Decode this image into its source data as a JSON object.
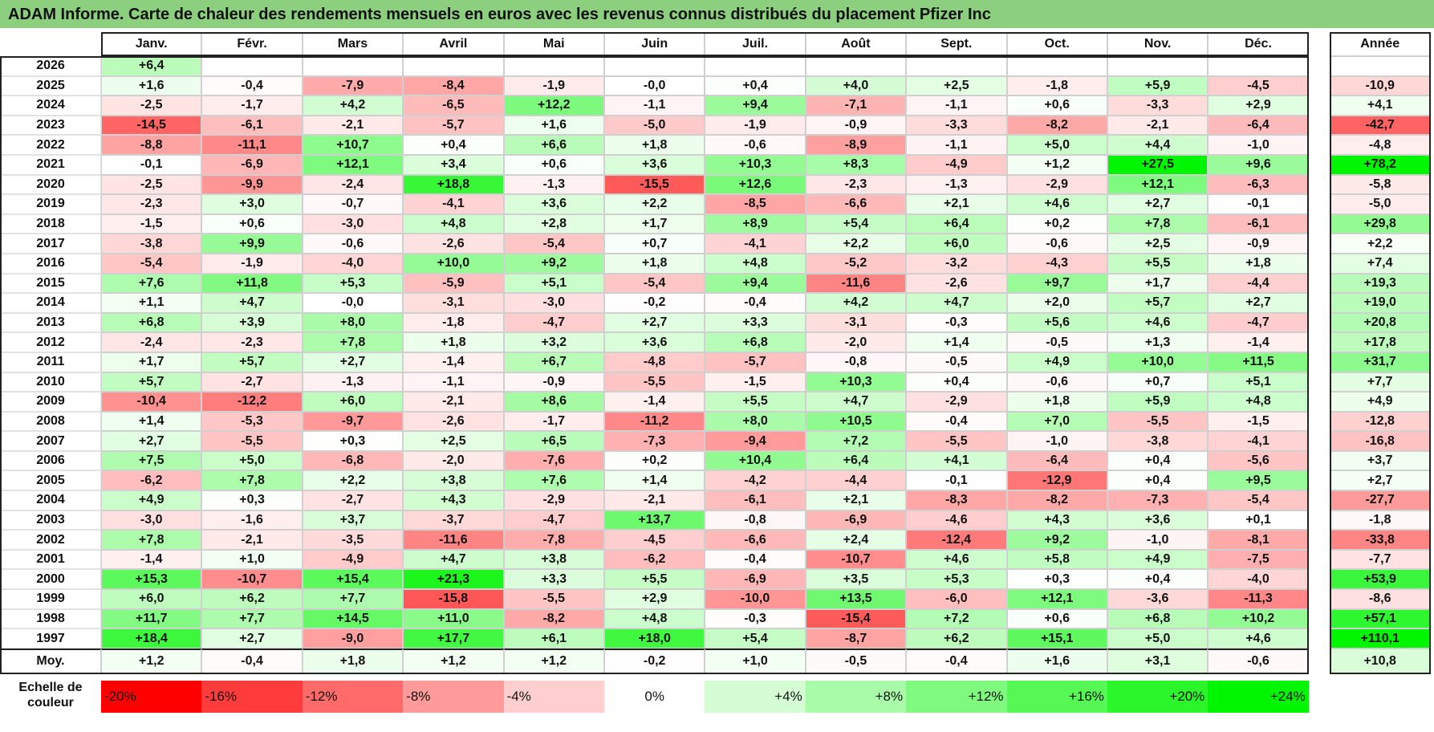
{
  "title": "ADAM Informe. Carte de chaleur des rendements mensuels en euros avec les revenus connus distribués du placement Pfizer Inc",
  "chart_data": {
    "type": "heatmap",
    "title": "ADAM Informe. Carte de chaleur des rendements mensuels en euros avec les revenus connus distribués du placement Pfizer Inc",
    "columns": [
      "Janv.",
      "Févr.",
      "Mars",
      "Avril",
      "Mai",
      "Juin",
      "Juil.",
      "Août",
      "Sept.",
      "Oct.",
      "Nov.",
      "Déc."
    ],
    "annual_header": "Année",
    "rows": [
      {
        "year": "2026",
        "values": [
          6.4,
          null,
          null,
          null,
          null,
          null,
          null,
          null,
          null,
          null,
          null,
          null
        ],
        "labels": [
          "+6,4",
          "",
          "",
          "",
          "",
          "",
          "",
          "",
          "",
          "",
          "",
          ""
        ],
        "annual": null,
        "annual_label": ""
      },
      {
        "year": "2025",
        "values": [
          1.6,
          -0.4,
          -7.9,
          -8.4,
          -1.9,
          -0.0,
          0.4,
          4.0,
          2.5,
          -1.8,
          5.9,
          -4.5
        ],
        "labels": [
          "+1,6",
          "-0,4",
          "-7,9",
          "-8,4",
          "-1,9",
          "-0,0",
          "+0,4",
          "+4,0",
          "+2,5",
          "-1,8",
          "+5,9",
          "-4,5"
        ],
        "annual": -10.9,
        "annual_label": "-10,9"
      },
      {
        "year": "2024",
        "values": [
          -2.5,
          -1.7,
          4.2,
          -6.5,
          12.2,
          -1.1,
          9.4,
          -7.1,
          -1.1,
          0.6,
          -3.3,
          2.9
        ],
        "labels": [
          "-2,5",
          "-1,7",
          "+4,2",
          "-6,5",
          "+12,2",
          "-1,1",
          "+9,4",
          "-7,1",
          "-1,1",
          "+0,6",
          "-3,3",
          "+2,9"
        ],
        "annual": 4.1,
        "annual_label": "+4,1"
      },
      {
        "year": "2023",
        "values": [
          -14.5,
          -6.1,
          -2.1,
          -5.7,
          1.6,
          -5.0,
          -1.9,
          -0.9,
          -3.3,
          -8.2,
          -2.1,
          -6.4
        ],
        "labels": [
          "-14,5",
          "-6,1",
          "-2,1",
          "-5,7",
          "+1,6",
          "-5,0",
          "-1,9",
          "-0,9",
          "-3,3",
          "-8,2",
          "-2,1",
          "-6,4"
        ],
        "annual": -42.7,
        "annual_label": "-42,7"
      },
      {
        "year": "2022",
        "values": [
          -8.8,
          -11.1,
          10.7,
          0.4,
          6.6,
          1.8,
          -0.6,
          -8.9,
          -1.1,
          5.0,
          4.4,
          -1.0
        ],
        "labels": [
          "-8,8",
          "-11,1",
          "+10,7",
          "+0,4",
          "+6,6",
          "+1,8",
          "-0,6",
          "-8,9",
          "-1,1",
          "+5,0",
          "+4,4",
          "-1,0"
        ],
        "annual": -4.8,
        "annual_label": "-4,8"
      },
      {
        "year": "2021",
        "values": [
          -0.1,
          -6.9,
          12.1,
          3.4,
          0.6,
          3.6,
          10.3,
          8.3,
          -4.9,
          1.2,
          27.5,
          9.6
        ],
        "labels": [
          "-0,1",
          "-6,9",
          "+12,1",
          "+3,4",
          "+0,6",
          "+3,6",
          "+10,3",
          "+8,3",
          "-4,9",
          "+1,2",
          "+27,5",
          "+9,6"
        ],
        "annual": 78.2,
        "annual_label": "+78,2"
      },
      {
        "year": "2020",
        "values": [
          -2.5,
          -9.9,
          -2.4,
          18.8,
          -1.3,
          -15.5,
          12.6,
          -2.3,
          -1.3,
          -2.9,
          12.1,
          -6.3
        ],
        "labels": [
          "-2,5",
          "-9,9",
          "-2,4",
          "+18,8",
          "-1,3",
          "-15,5",
          "+12,6",
          "-2,3",
          "-1,3",
          "-2,9",
          "+12,1",
          "-6,3"
        ],
        "annual": -5.8,
        "annual_label": "-5,8"
      },
      {
        "year": "2019",
        "values": [
          -2.3,
          3.0,
          -0.7,
          -4.1,
          3.6,
          2.2,
          -8.5,
          -6.6,
          2.1,
          4.6,
          2.7,
          -0.1
        ],
        "labels": [
          "-2,3",
          "+3,0",
          "-0,7",
          "-4,1",
          "+3,6",
          "+2,2",
          "-8,5",
          "-6,6",
          "+2,1",
          "+4,6",
          "+2,7",
          "-0,1"
        ],
        "annual": -5.0,
        "annual_label": "-5,0"
      },
      {
        "year": "2018",
        "values": [
          -1.5,
          0.6,
          -3.0,
          4.8,
          2.8,
          1.7,
          8.9,
          5.4,
          6.4,
          0.2,
          7.8,
          -6.1
        ],
        "labels": [
          "-1,5",
          "+0,6",
          "-3,0",
          "+4,8",
          "+2,8",
          "+1,7",
          "+8,9",
          "+5,4",
          "+6,4",
          "+0,2",
          "+7,8",
          "-6,1"
        ],
        "annual": 29.8,
        "annual_label": "+29,8"
      },
      {
        "year": "2017",
        "values": [
          -3.8,
          9.9,
          -0.6,
          -2.6,
          -5.4,
          0.7,
          -4.1,
          2.2,
          6.0,
          -0.6,
          2.5,
          -0.9
        ],
        "labels": [
          "-3,8",
          "+9,9",
          "-0,6",
          "-2,6",
          "-5,4",
          "+0,7",
          "-4,1",
          "+2,2",
          "+6,0",
          "-0,6",
          "+2,5",
          "-0,9"
        ],
        "annual": 2.2,
        "annual_label": "+2,2"
      },
      {
        "year": "2016",
        "values": [
          -5.4,
          -1.9,
          -4.0,
          10.0,
          9.2,
          1.8,
          4.8,
          -5.2,
          -3.2,
          -4.3,
          5.5,
          1.8
        ],
        "labels": [
          "-5,4",
          "-1,9",
          "-4,0",
          "+10,0",
          "+9,2",
          "+1,8",
          "+4,8",
          "-5,2",
          "-3,2",
          "-4,3",
          "+5,5",
          "+1,8"
        ],
        "annual": 7.4,
        "annual_label": "+7,4"
      },
      {
        "year": "2015",
        "values": [
          7.6,
          11.8,
          5.3,
          -5.9,
          5.1,
          -5.4,
          9.4,
          -11.6,
          -2.6,
          9.7,
          1.7,
          -4.4
        ],
        "labels": [
          "+7,6",
          "+11,8",
          "+5,3",
          "-5,9",
          "+5,1",
          "-5,4",
          "+9,4",
          "-11,6",
          "-2,6",
          "+9,7",
          "+1,7",
          "-4,4"
        ],
        "annual": 19.3,
        "annual_label": "+19,3"
      },
      {
        "year": "2014",
        "values": [
          1.1,
          4.7,
          -0.0,
          -3.1,
          -3.0,
          -0.2,
          -0.4,
          4.2,
          4.7,
          2.0,
          5.7,
          2.7
        ],
        "labels": [
          "+1,1",
          "+4,7",
          "-0,0",
          "-3,1",
          "-3,0",
          "-0,2",
          "-0,4",
          "+4,2",
          "+4,7",
          "+2,0",
          "+5,7",
          "+2,7"
        ],
        "annual": 19.0,
        "annual_label": "+19,0"
      },
      {
        "year": "2013",
        "values": [
          6.8,
          3.9,
          8.0,
          -1.8,
          -4.7,
          2.7,
          3.3,
          -3.1,
          -0.3,
          5.6,
          4.6,
          -4.7
        ],
        "labels": [
          "+6,8",
          "+3,9",
          "+8,0",
          "-1,8",
          "-4,7",
          "+2,7",
          "+3,3",
          "-3,1",
          "-0,3",
          "+5,6",
          "+4,6",
          "-4,7"
        ],
        "annual": 20.8,
        "annual_label": "+20,8"
      },
      {
        "year": "2012",
        "values": [
          -2.4,
          -2.3,
          7.8,
          1.8,
          3.2,
          3.6,
          6.8,
          -2.0,
          1.4,
          -0.5,
          1.3,
          -1.4
        ],
        "labels": [
          "-2,4",
          "-2,3",
          "+7,8",
          "+1,8",
          "+3,2",
          "+3,6",
          "+6,8",
          "-2,0",
          "+1,4",
          "-0,5",
          "+1,3",
          "-1,4"
        ],
        "annual": 17.8,
        "annual_label": "+17,8"
      },
      {
        "year": "2011",
        "values": [
          1.7,
          5.7,
          2.7,
          -1.4,
          6.7,
          -4.8,
          -5.7,
          -0.8,
          -0.5,
          4.9,
          10.0,
          11.5
        ],
        "labels": [
          "+1,7",
          "+5,7",
          "+2,7",
          "-1,4",
          "+6,7",
          "-4,8",
          "-5,7",
          "-0,8",
          "-0,5",
          "+4,9",
          "+10,0",
          "+11,5"
        ],
        "annual": 31.7,
        "annual_label": "+31,7"
      },
      {
        "year": "2010",
        "values": [
          5.7,
          -2.7,
          -1.3,
          -1.1,
          -0.9,
          -5.5,
          -1.5,
          10.3,
          0.4,
          -0.6,
          0.7,
          5.1
        ],
        "labels": [
          "+5,7",
          "-2,7",
          "-1,3",
          "-1,1",
          "-0,9",
          "-5,5",
          "-1,5",
          "+10,3",
          "+0,4",
          "-0,6",
          "+0,7",
          "+5,1"
        ],
        "annual": 7.7,
        "annual_label": "+7,7"
      },
      {
        "year": "2009",
        "values": [
          -10.4,
          -12.2,
          6.0,
          -2.1,
          8.6,
          -1.4,
          5.5,
          4.7,
          -2.9,
          1.8,
          5.9,
          4.8
        ],
        "labels": [
          "-10,4",
          "-12,2",
          "+6,0",
          "-2,1",
          "+8,6",
          "-1,4",
          "+5,5",
          "+4,7",
          "-2,9",
          "+1,8",
          "+5,9",
          "+4,8"
        ],
        "annual": 4.9,
        "annual_label": "+4,9"
      },
      {
        "year": "2008",
        "values": [
          1.4,
          -5.3,
          -9.7,
          -2.6,
          -1.7,
          -11.2,
          8.0,
          10.5,
          -0.4,
          7.0,
          -5.5,
          -1.5
        ],
        "labels": [
          "+1,4",
          "-5,3",
          "-9,7",
          "-2,6",
          "-1,7",
          "-11,2",
          "+8,0",
          "+10,5",
          "-0,4",
          "+7,0",
          "-5,5",
          "-1,5"
        ],
        "annual": -12.8,
        "annual_label": "-12,8"
      },
      {
        "year": "2007",
        "values": [
          2.7,
          -5.5,
          0.3,
          2.5,
          6.5,
          -7.3,
          -9.4,
          7.2,
          -5.5,
          -1.0,
          -3.8,
          -4.1
        ],
        "labels": [
          "+2,7",
          "-5,5",
          "+0,3",
          "+2,5",
          "+6,5",
          "-7,3",
          "-9,4",
          "+7,2",
          "-5,5",
          "-1,0",
          "-3,8",
          "-4,1"
        ],
        "annual": -16.8,
        "annual_label": "-16,8"
      },
      {
        "year": "2006",
        "values": [
          7.5,
          5.0,
          -6.8,
          -2.0,
          -7.6,
          0.2,
          10.4,
          6.4,
          4.1,
          -6.4,
          0.4,
          -5.6
        ],
        "labels": [
          "+7,5",
          "+5,0",
          "-6,8",
          "-2,0",
          "-7,6",
          "+0,2",
          "+10,4",
          "+6,4",
          "+4,1",
          "-6,4",
          "+0,4",
          "-5,6"
        ],
        "annual": 3.7,
        "annual_label": "+3,7"
      },
      {
        "year": "2005",
        "values": [
          -6.2,
          7.8,
          2.2,
          3.8,
          7.6,
          1.4,
          -4.2,
          -4.4,
          -0.1,
          -12.9,
          0.4,
          9.5
        ],
        "labels": [
          "-6,2",
          "+7,8",
          "+2,2",
          "+3,8",
          "+7,6",
          "+1,4",
          "-4,2",
          "-4,4",
          "-0,1",
          "-12,9",
          "+0,4",
          "+9,5"
        ],
        "annual": 2.7,
        "annual_label": "+2,7"
      },
      {
        "year": "2004",
        "values": [
          4.9,
          0.3,
          -2.7,
          4.3,
          -2.9,
          -2.1,
          -6.1,
          2.1,
          -8.3,
          -8.2,
          -7.3,
          -5.4
        ],
        "labels": [
          "+4,9",
          "+0,3",
          "-2,7",
          "+4,3",
          "-2,9",
          "-2,1",
          "-6,1",
          "+2,1",
          "-8,3",
          "-8,2",
          "-7,3",
          "-5,4"
        ],
        "annual": -27.7,
        "annual_label": "-27,7"
      },
      {
        "year": "2003",
        "values": [
          -3.0,
          -1.6,
          3.7,
          -3.7,
          -4.7,
          13.7,
          -0.8,
          -6.9,
          -4.6,
          4.3,
          3.6,
          0.1
        ],
        "labels": [
          "-3,0",
          "-1,6",
          "+3,7",
          "-3,7",
          "-4,7",
          "+13,7",
          "-0,8",
          "-6,9",
          "-4,6",
          "+4,3",
          "+3,6",
          "+0,1"
        ],
        "annual": -1.8,
        "annual_label": "-1,8"
      },
      {
        "year": "2002",
        "values": [
          7.8,
          -2.1,
          -3.5,
          -11.6,
          -7.8,
          -4.5,
          -6.6,
          2.4,
          -12.4,
          9.2,
          -1.0,
          -8.1
        ],
        "labels": [
          "+7,8",
          "-2,1",
          "-3,5",
          "-11,6",
          "-7,8",
          "-4,5",
          "-6,6",
          "+2,4",
          "-12,4",
          "+9,2",
          "-1,0",
          "-8,1"
        ],
        "annual": -33.8,
        "annual_label": "-33,8"
      },
      {
        "year": "2001",
        "values": [
          -1.4,
          1.0,
          -4.9,
          4.7,
          3.8,
          -6.2,
          -0.4,
          -10.7,
          4.6,
          5.8,
          4.9,
          -7.5
        ],
        "labels": [
          "-1,4",
          "+1,0",
          "-4,9",
          "+4,7",
          "+3,8",
          "-6,2",
          "-0,4",
          "-10,7",
          "+4,6",
          "+5,8",
          "+4,9",
          "-7,5"
        ],
        "annual": -7.7,
        "annual_label": "-7,7"
      },
      {
        "year": "2000",
        "values": [
          15.3,
          -10.7,
          15.4,
          21.3,
          3.3,
          5.5,
          -6.9,
          3.5,
          5.3,
          0.3,
          0.4,
          -4.0
        ],
        "labels": [
          "+15,3",
          "-10,7",
          "+15,4",
          "+21,3",
          "+3,3",
          "+5,5",
          "-6,9",
          "+3,5",
          "+5,3",
          "+0,3",
          "+0,4",
          "-4,0"
        ],
        "annual": 53.9,
        "annual_label": "+53,9"
      },
      {
        "year": "1999",
        "values": [
          6.0,
          6.2,
          7.7,
          -15.8,
          -5.5,
          2.9,
          -10.0,
          13.5,
          -6.0,
          12.1,
          -3.6,
          -11.3
        ],
        "labels": [
          "+6,0",
          "+6,2",
          "+7,7",
          "-15,8",
          "-5,5",
          "+2,9",
          "-10,0",
          "+13,5",
          "-6,0",
          "+12,1",
          "-3,6",
          "-11,3"
        ],
        "annual": -8.6,
        "annual_label": "-8,6"
      },
      {
        "year": "1998",
        "values": [
          11.7,
          7.7,
          14.5,
          11.0,
          -8.2,
          4.8,
          -0.3,
          -15.4,
          7.2,
          0.6,
          6.8,
          10.2
        ],
        "labels": [
          "+11,7",
          "+7,7",
          "+14,5",
          "+11,0",
          "-8,2",
          "+4,8",
          "-0,3",
          "-15,4",
          "+7,2",
          "+0,6",
          "+6,8",
          "+10,2"
        ],
        "annual": 57.1,
        "annual_label": "+57,1"
      },
      {
        "year": "1997",
        "values": [
          18.4,
          2.7,
          -9.0,
          17.7,
          6.1,
          18.0,
          5.4,
          -8.7,
          6.2,
          15.1,
          5.0,
          4.6
        ],
        "labels": [
          "+18,4",
          "+2,7",
          "-9,0",
          "+17,7",
          "+6,1",
          "+18,0",
          "+5,4",
          "-8,7",
          "+6,2",
          "+15,1",
          "+5,0",
          "+4,6"
        ],
        "annual": 110.1,
        "annual_label": "+110,1"
      }
    ],
    "average": {
      "label": "Moy.",
      "values": [
        1.2,
        -0.4,
        1.8,
        1.2,
        1.2,
        -0.2,
        1.0,
        -0.5,
        -0.4,
        1.6,
        3.1,
        -0.6
      ],
      "labels": [
        "+1,2",
        "-0,4",
        "+1,8",
        "+1,2",
        "+1,2",
        "-0,2",
        "+1,0",
        "-0,5",
        "-0,4",
        "+1,6",
        "+3,1",
        "-0,6"
      ],
      "annual": 10.8,
      "annual_label": "+10,8"
    },
    "scale": {
      "label": "Echelle de couleur",
      "values": [
        -20,
        -16,
        -12,
        -8,
        -4,
        0,
        4,
        8,
        12,
        16,
        20,
        24
      ],
      "labels": [
        "-20%",
        "-16%",
        "-12%",
        "-8%",
        "-4%",
        "0%",
        "+4%",
        "+8%",
        "+12%",
        "+16%",
        "+20%",
        "+24%"
      ],
      "colors": [
        "#ff0000",
        "#ff3c3c",
        "#ff6b6b",
        "#ff9a9a",
        "#ffcfcf",
        "#ffffff",
        "#d4fdd4",
        "#a9fba9",
        "#7ffa7f",
        "#55f855",
        "#2af62a",
        "#00f500"
      ]
    }
  },
  "colors": {
    "title_bg": "#8ccf7e",
    "negative_max": "#ff0000",
    "positive_max": "#00f500",
    "neutral": "#ffffff"
  }
}
